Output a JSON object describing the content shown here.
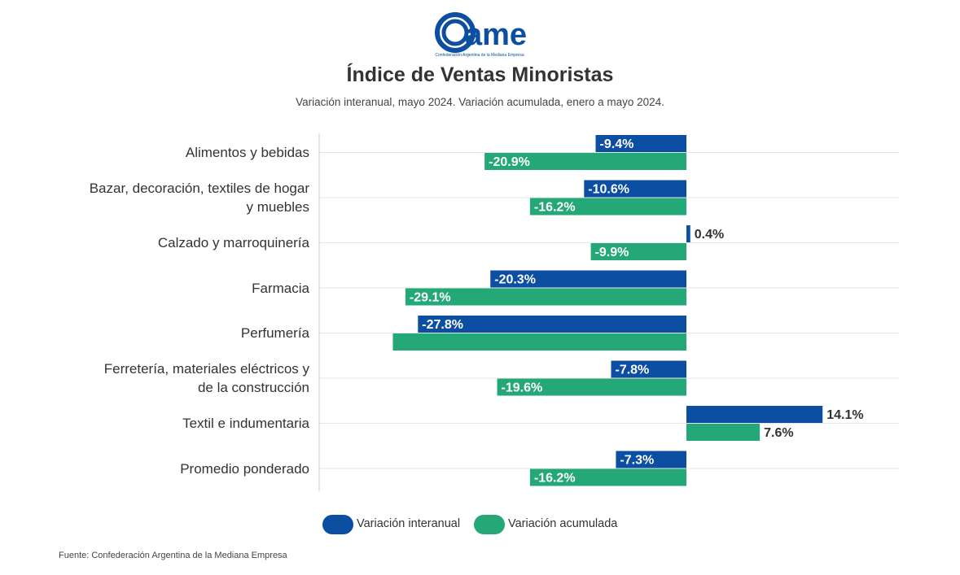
{
  "logo": {
    "brand_text": "ame",
    "tagline": "Confederación Argentina de la Mediana Empresa"
  },
  "colors": {
    "interanual": "#0b4ea2",
    "acumulada": "#25a878",
    "grid": "#e6e6e6",
    "axis": "#cccccc"
  },
  "chart_data": {
    "type": "bar",
    "orientation": "horizontal",
    "title": "Índice de Ventas Minoristas",
    "subtitle": "Variación interanual, mayo 2024. Variación acumulada, enero a mayo 2024.",
    "categories": [
      [
        "Alimentos y bebidas"
      ],
      [
        "Bazar, decoración, textiles de hogar",
        "y muebles"
      ],
      [
        "Calzado y marroquinería"
      ],
      [
        "Farmacia"
      ],
      [
        "Perfumería"
      ],
      [
        "Ferretería, materiales eléctricos y",
        "de la construcción"
      ],
      [
        "Textil e indumentaria"
      ],
      [
        "Promedio ponderado"
      ]
    ],
    "series": [
      {
        "name": "Variación interanual",
        "values": [
          -9.4,
          -10.6,
          0.4,
          -20.3,
          -27.8,
          -7.8,
          14.1,
          -7.3
        ],
        "labels": [
          "-9.4%",
          "-10.6%",
          "0.4%",
          "-20.3%",
          "-27.8%",
          "-7.8%",
          "14.1%",
          "-7.3%"
        ]
      },
      {
        "name": "Variación acumulada",
        "values": [
          -20.9,
          -16.2,
          -9.9,
          -29.1,
          -30.4,
          -19.6,
          7.6,
          -16.2
        ],
        "labels": [
          "-20.9%",
          "-16.2%",
          "-9.9%",
          "-29.1%",
          "",
          "-19.6%",
          "7.6%",
          "-16.2%"
        ]
      }
    ],
    "xlim": [
      -38,
      22
    ],
    "unit": "%"
  },
  "legend": {
    "items": [
      "Variación interanual",
      "Variación acumulada"
    ]
  },
  "source": "Fuente: Confederación Argentina de la Mediana Empresa"
}
